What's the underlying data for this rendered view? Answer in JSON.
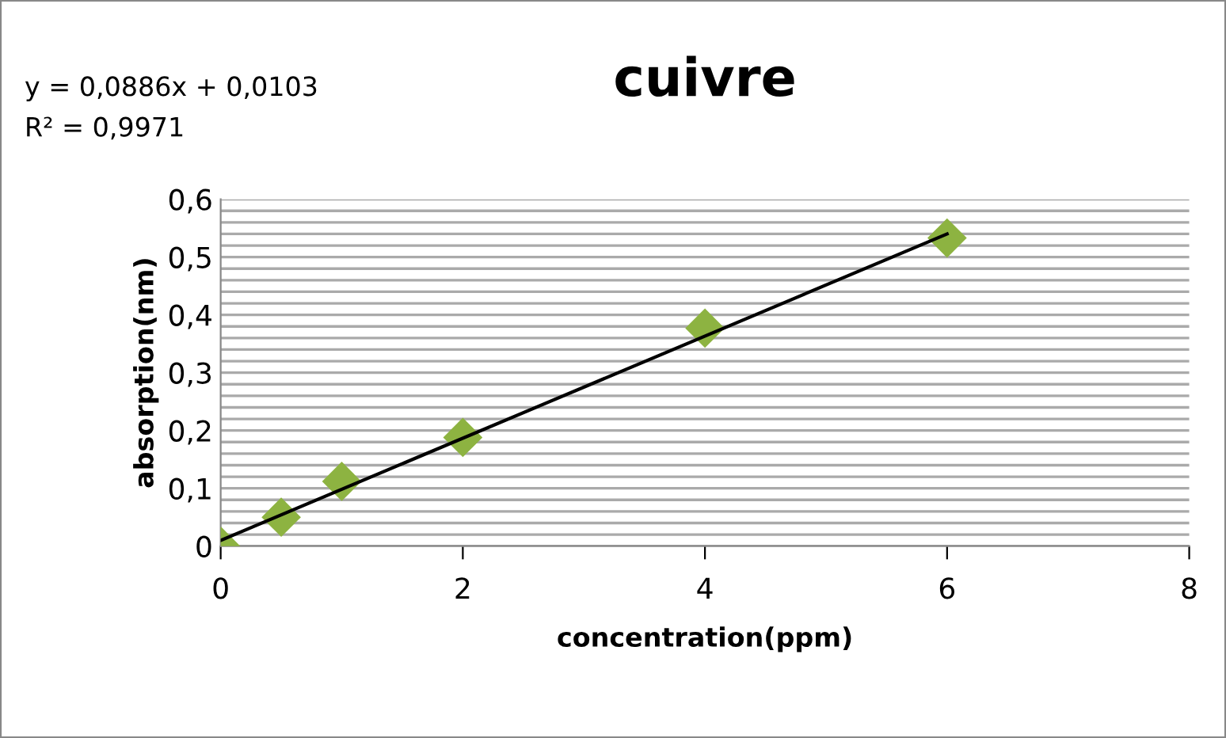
{
  "chart_data": {
    "type": "scatter",
    "title": "cuivre",
    "xlabel": "concentration(ppm)",
    "ylabel": "absorption(nm)",
    "annotations": [
      "y = 0,0886x + 0,0103",
      "R² = 0,9971"
    ],
    "series": [
      {
        "color": "#8db341",
        "marker": "diamond",
        "x": [
          0,
          0.5,
          1,
          2,
          4,
          6
        ],
        "values": [
          0.0,
          0.05,
          0.112,
          0.188,
          0.377,
          0.533
        ]
      },
      {
        "type": "line",
        "color": "#000000",
        "marker": "none",
        "line_style": "solid",
        "x": [
          0,
          6
        ],
        "values": [
          0.01,
          0.54
        ]
      }
    ],
    "xlim": [
      0,
      8
    ],
    "xticks": [
      0,
      2,
      4,
      6,
      8
    ],
    "ylim": [
      0,
      0.6
    ],
    "yticks": [
      0,
      {
        "value": 0.02,
        "label": null
      },
      {
        "value": 0.04,
        "label": null
      },
      {
        "value": 0.06,
        "label": null
      },
      {
        "value": 0.08,
        "label": null
      },
      {
        "value": 0.1,
        "label": "0,1"
      },
      {
        "value": 0.12,
        "label": null
      },
      {
        "value": 0.14,
        "label": null
      },
      {
        "value": 0.16,
        "label": null
      },
      {
        "value": 0.18,
        "label": null
      },
      {
        "value": 0.2,
        "label": "0,2"
      },
      {
        "value": 0.22,
        "label": null
      },
      {
        "value": 0.24,
        "label": null
      },
      {
        "value": 0.26,
        "label": null
      },
      {
        "value": 0.28,
        "label": null
      },
      {
        "value": 0.3,
        "label": "0,3"
      },
      {
        "value": 0.32,
        "label": null
      },
      {
        "value": 0.34,
        "label": null
      },
      {
        "value": 0.36,
        "label": null
      },
      {
        "value": 0.38,
        "label": null
      },
      {
        "value": 0.4,
        "label": "0,4"
      },
      {
        "value": 0.42,
        "label": null
      },
      {
        "value": 0.44,
        "label": null
      },
      {
        "value": 0.46,
        "label": null
      },
      {
        "value": 0.48,
        "label": null
      },
      {
        "value": 0.5,
        "label": "0,5"
      },
      {
        "value": 0.52,
        "label": null
      },
      {
        "value": 0.54,
        "label": null
      },
      {
        "value": 0.56,
        "label": null
      },
      {
        "value": 0.58,
        "label": null
      },
      {
        "value": 0.6,
        "label": "0,6"
      }
    ],
    "grid": "y",
    "legend": false
  }
}
